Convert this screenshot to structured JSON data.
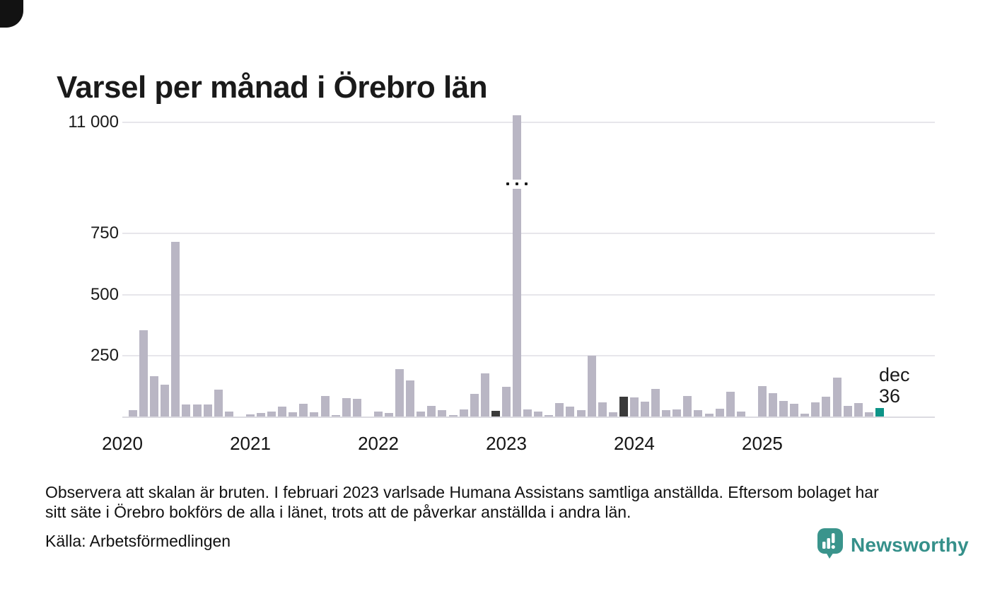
{
  "corner_mark": "decorative-black-corner",
  "chart_data": {
    "type": "bar",
    "title": "Varsel per månad i Örebro län",
    "xlabel": "",
    "ylabel": "",
    "broken_axis": true,
    "broken_axis_note": "scale broken between 750 and 11 000",
    "y_ticks": [
      {
        "label": "250",
        "value": 250
      },
      {
        "label": "500",
        "value": 500
      },
      {
        "label": "750",
        "value": 750
      },
      {
        "label": "11 000",
        "value": 11000,
        "broken": true
      }
    ],
    "x_ticks": [
      {
        "label": "2020",
        "month_index": 0
      },
      {
        "label": "2021",
        "month_index": 12
      },
      {
        "label": "2022",
        "month_index": 24
      },
      {
        "label": "2023",
        "month_index": 36
      },
      {
        "label": "2024",
        "month_index": 48
      },
      {
        "label": "2025",
        "month_index": 60
      }
    ],
    "legend_position": "none",
    "grid": true,
    "months": [
      {
        "month": "2020-01",
        "value": 0
      },
      {
        "month": "2020-02",
        "value": 25
      },
      {
        "month": "2020-03",
        "value": 355
      },
      {
        "month": "2020-04",
        "value": 165
      },
      {
        "month": "2020-05",
        "value": 130
      },
      {
        "month": "2020-06",
        "value": 715
      },
      {
        "month": "2020-07",
        "value": 50
      },
      {
        "month": "2020-08",
        "value": 48
      },
      {
        "month": "2020-09",
        "value": 48
      },
      {
        "month": "2020-10",
        "value": 110
      },
      {
        "month": "2020-11",
        "value": 20
      },
      {
        "month": "2020-12",
        "value": 0
      },
      {
        "month": "2021-01",
        "value": 8
      },
      {
        "month": "2021-02",
        "value": 14
      },
      {
        "month": "2021-03",
        "value": 21
      },
      {
        "month": "2021-04",
        "value": 41
      },
      {
        "month": "2021-05",
        "value": 16
      },
      {
        "month": "2021-06",
        "value": 53
      },
      {
        "month": "2021-07",
        "value": 17
      },
      {
        "month": "2021-08",
        "value": 85
      },
      {
        "month": "2021-09",
        "value": 6
      },
      {
        "month": "2021-10",
        "value": 76
      },
      {
        "month": "2021-11",
        "value": 73
      },
      {
        "month": "2021-12",
        "value": 0
      },
      {
        "month": "2022-01",
        "value": 21
      },
      {
        "month": "2022-02",
        "value": 15
      },
      {
        "month": "2022-03",
        "value": 195
      },
      {
        "month": "2022-04",
        "value": 148
      },
      {
        "month": "2022-05",
        "value": 19
      },
      {
        "month": "2022-06",
        "value": 43
      },
      {
        "month": "2022-07",
        "value": 26
      },
      {
        "month": "2022-08",
        "value": 3
      },
      {
        "month": "2022-09",
        "value": 28
      },
      {
        "month": "2022-10",
        "value": 94
      },
      {
        "month": "2022-11",
        "value": 177
      },
      {
        "month": "2022-12",
        "value": 23
      },
      {
        "month": "2023-01",
        "value": 122
      },
      {
        "month": "2023-02",
        "value": 11200,
        "broken_bar": true
      },
      {
        "month": "2023-03",
        "value": 28
      },
      {
        "month": "2023-04",
        "value": 21
      },
      {
        "month": "2023-05",
        "value": 7
      },
      {
        "month": "2023-06",
        "value": 56
      },
      {
        "month": "2023-07",
        "value": 42
      },
      {
        "month": "2023-08",
        "value": 27
      },
      {
        "month": "2023-09",
        "value": 250
      },
      {
        "month": "2023-10",
        "value": 58
      },
      {
        "month": "2023-11",
        "value": 17
      },
      {
        "month": "2023-12",
        "value": 80
      },
      {
        "month": "2024-01",
        "value": 78
      },
      {
        "month": "2024-02",
        "value": 60
      },
      {
        "month": "2024-03",
        "value": 112
      },
      {
        "month": "2024-04",
        "value": 25
      },
      {
        "month": "2024-05",
        "value": 29
      },
      {
        "month": "2024-06",
        "value": 83
      },
      {
        "month": "2024-07",
        "value": 25
      },
      {
        "month": "2024-08",
        "value": 13
      },
      {
        "month": "2024-09",
        "value": 32
      },
      {
        "month": "2024-10",
        "value": 100
      },
      {
        "month": "2024-11",
        "value": 19
      },
      {
        "month": "2024-12",
        "value": 0
      },
      {
        "month": "2025-01",
        "value": 126
      },
      {
        "month": "2025-02",
        "value": 95
      },
      {
        "month": "2025-03",
        "value": 64
      },
      {
        "month": "2025-04",
        "value": 53
      },
      {
        "month": "2025-05",
        "value": 13
      },
      {
        "month": "2025-06",
        "value": 59
      },
      {
        "month": "2025-07",
        "value": 80
      },
      {
        "month": "2025-08",
        "value": 158
      },
      {
        "month": "2025-09",
        "value": 44
      },
      {
        "month": "2025-10",
        "value": 56
      },
      {
        "month": "2025-11",
        "value": 18
      },
      {
        "month": "2025-12",
        "value": 36
      }
    ],
    "highlight": {
      "december_color_rule": "bars for december months are dark",
      "latest_bar": "2025-12"
    },
    "annotation": {
      "label": "dec",
      "value": "36"
    },
    "colors": {
      "bar_default": "#b9b6c4",
      "bar_december": "#3a3a3a",
      "bar_latest": "#0e9488",
      "gridline": "#e7e6eb",
      "baseline": "#dcdbe1",
      "text": "#1a1a1a"
    }
  },
  "footnote": {
    "line1": "Observera att skalan är bruten. I februari 2023 varlsade Humana Assistans samtliga anställda. Eftersom bolaget har",
    "line2": "sitt säte i Örebro bokförs de alla i länet, trots att de påverkar anställda i andra län."
  },
  "source": {
    "label": "Källa: Arbetsförmedlingen"
  },
  "branding": {
    "name": "Newsworthy",
    "logo_color": "#35908a"
  }
}
